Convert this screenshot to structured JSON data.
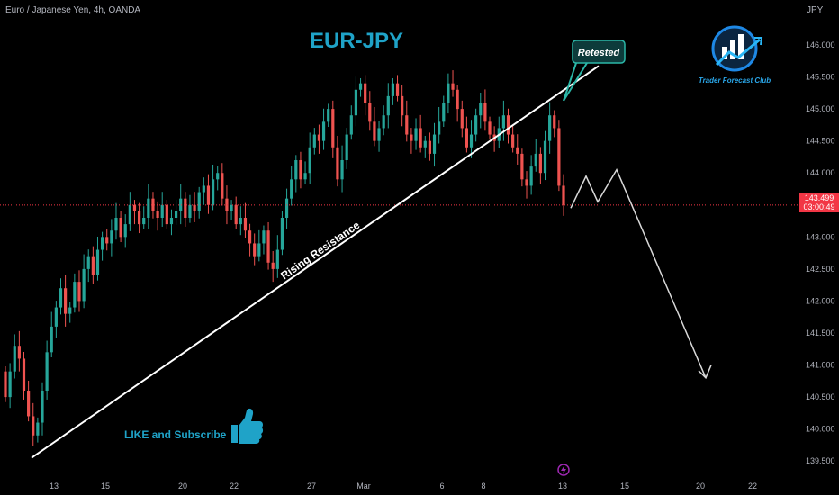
{
  "header": {
    "symbol_info": "Euro / Japanese Yen, 4h, OANDA",
    "currency": "JPY"
  },
  "annotations": {
    "title": "EUR-JPY",
    "retested_label": "Retested",
    "trendline_label": "Rising Resistance",
    "cta_text": "LIKE and Subscribe",
    "logo_text": "Trader Forecast Club"
  },
  "price_tag": {
    "price": "143.499",
    "countdown": "03:00:49"
  },
  "colors": {
    "up": "#26a69a",
    "down": "#ef5350",
    "title": "#1fa3c8",
    "trendline": "#ffffff",
    "projection": "#d9d9d9",
    "axis_text": "#b2b5be",
    "price_tag": "#f23645"
  },
  "icons": {
    "like": "thumbs-up-icon",
    "logo": "trader-forecast-club-logo",
    "event": "lightning-event-icon"
  },
  "chart_data": {
    "type": "candlestick",
    "interval": "4h",
    "ylim": [
      139.25,
      146.45
    ],
    "yticks": [
      "146.000",
      "145.500",
      "145.000",
      "144.500",
      "144.000",
      "143.500",
      "143.000",
      "142.500",
      "142.000",
      "141.500",
      "141.000",
      "140.500",
      "140.000",
      "139.500"
    ],
    "xticks": [
      "13",
      "15",
      "20",
      "22",
      "27",
      "Mar",
      "6",
      "8",
      "13",
      "15",
      "20",
      "22"
    ],
    "last_price": 143.499,
    "close_series": [
      140.5,
      140.9,
      141.3,
      141.1,
      140.6,
      140.2,
      139.9,
      140.1,
      140.6,
      141.2,
      141.6,
      141.9,
      142.2,
      141.8,
      141.9,
      142.3,
      142.0,
      142.5,
      142.7,
      142.4,
      142.8,
      143.0,
      142.9,
      143.1,
      143.3,
      143.0,
      143.2,
      143.5,
      143.4,
      143.2,
      143.3,
      143.6,
      143.4,
      143.3,
      143.5,
      143.2,
      143.3,
      143.4,
      143.6,
      143.3,
      143.5,
      143.4,
      143.7,
      143.8,
      143.5,
      143.9,
      144.0,
      143.6,
      143.4,
      143.5,
      143.2,
      143.3,
      143.1,
      142.9,
      142.7,
      142.9,
      143.1,
      142.6,
      142.5,
      142.8,
      143.3,
      143.6,
      143.9,
      144.2,
      143.9,
      144.0,
      144.4,
      144.6,
      144.5,
      144.8,
      145.0,
      144.4,
      143.9,
      144.2,
      144.6,
      144.9,
      145.3,
      145.4,
      145.1,
      144.8,
      144.5,
      144.7,
      144.9,
      145.2,
      145.4,
      145.2,
      144.9,
      144.6,
      144.5,
      144.7,
      144.4,
      144.5,
      144.3,
      144.6,
      144.8,
      145.1,
      145.4,
      145.3,
      145.0,
      144.7,
      144.4,
      144.6,
      144.9,
      145.1,
      144.8,
      144.6,
      144.5,
      144.7,
      144.9,
      144.6,
      144.4,
      144.3,
      143.9,
      143.8,
      144.1,
      144.3,
      144.0,
      144.5,
      144.9,
      144.7,
      143.8,
      143.5
    ],
    "trendline": {
      "label": "Rising Resistance",
      "from": {
        "x": "Feb 11",
        "y": 139.55
      },
      "to": {
        "x": "Mar 14",
        "y": 145.25
      }
    },
    "projection": [
      143.45,
      143.95,
      143.55,
      144.05,
      140.8,
      141.0
    ]
  }
}
